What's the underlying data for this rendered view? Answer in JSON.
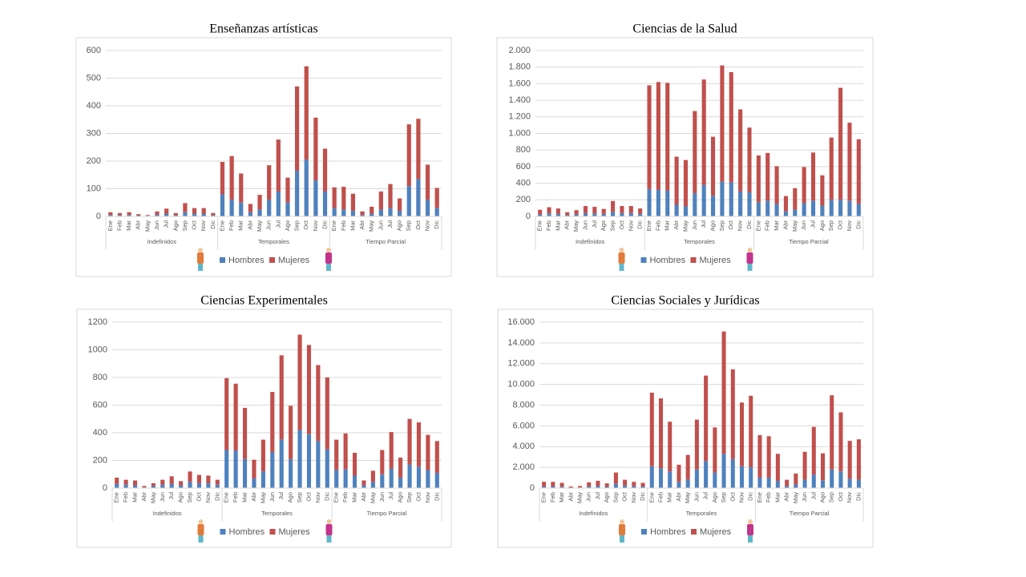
{
  "chart_data": [
    {
      "type": "bar",
      "stacked": true,
      "title": "Enseñanzas artísticas",
      "groups": [
        "Indefinidos",
        "Temporales",
        "Tiempo Parcial"
      ],
      "categories": [
        "Ene",
        "Feb",
        "Mar",
        "Abr",
        "May",
        "Jun",
        "Jul",
        "Ago",
        "Sep",
        "Oct",
        "Nov",
        "Dic",
        "Ene",
        "Feb",
        "Mar",
        "Abr",
        "May",
        "Jun",
        "Jul",
        "Ago",
        "Sep",
        "Oct",
        "Nov",
        "Dic",
        "Ene",
        "Feb",
        "Mar",
        "Abr",
        "May",
        "Jun",
        "Jul",
        "Ago",
        "Sep",
        "Oct",
        "Nov",
        "Dic"
      ],
      "series": [
        {
          "name": "Hombres",
          "color": "#4f81bd",
          "values": [
            5,
            4,
            5,
            3,
            2,
            6,
            10,
            4,
            15,
            10,
            10,
            4,
            80,
            60,
            50,
            15,
            25,
            60,
            90,
            50,
            165,
            205,
            130,
            90,
            30,
            25,
            20,
            5,
            10,
            25,
            30,
            20,
            110,
            135,
            60,
            30
          ]
        },
        {
          "name": "Mujeres",
          "color": "#c0504d",
          "values": [
            10,
            8,
            10,
            5,
            3,
            12,
            18,
            8,
            33,
            20,
            20,
            8,
            117,
            158,
            105,
            30,
            53,
            125,
            188,
            90,
            305,
            338,
            227,
            155,
            75,
            82,
            62,
            13,
            25,
            65,
            87,
            45,
            223,
            218,
            127,
            73
          ]
        }
      ],
      "ylim": [
        0,
        600
      ],
      "yticks": [
        0,
        100,
        200,
        300,
        400,
        500,
        600
      ],
      "grid": true,
      "legend": "bottom"
    },
    {
      "type": "bar",
      "stacked": true,
      "title": "Ciencias de la Salud",
      "groups": [
        "Indefinidos",
        "Temporales",
        "Tiempo Parcial"
      ],
      "categories": [
        "Ene",
        "Feb",
        "Mar",
        "Abr",
        "May",
        "Jun",
        "Jul",
        "Ago",
        "Sep",
        "Oct",
        "Nov",
        "Dic",
        "Ene",
        "Feb",
        "Mar",
        "Abr",
        "May",
        "Jun",
        "Jul",
        "Ago",
        "Sep",
        "Oct",
        "Nov",
        "Dic",
        "Ene",
        "Feb",
        "Mar",
        "Abr",
        "May",
        "Jun",
        "Jul",
        "Ago",
        "Sep",
        "Oct",
        "Nov",
        "Dic"
      ],
      "series": [
        {
          "name": "Hombres",
          "color": "#4f81bd",
          "values": [
            25,
            35,
            30,
            15,
            25,
            40,
            35,
            30,
            55,
            40,
            40,
            30,
            330,
            320,
            310,
            140,
            120,
            280,
            380,
            250,
            420,
            410,
            300,
            290,
            170,
            190,
            150,
            60,
            80,
            160,
            190,
            130,
            200,
            200,
            190,
            150
          ]
        },
        {
          "name": "Mujeres",
          "color": "#c0504d",
          "values": [
            55,
            75,
            65,
            35,
            50,
            85,
            80,
            60,
            130,
            85,
            85,
            65,
            1250,
            1300,
            1300,
            580,
            560,
            990,
            1270,
            710,
            1400,
            1330,
            990,
            780,
            565,
            575,
            455,
            185,
            260,
            435,
            580,
            365,
            750,
            1350,
            940,
            780
          ]
        }
      ],
      "ylim": [
        0,
        2000
      ],
      "yticks": [
        0,
        {
          "value": 200,
          "label": "200"
        },
        {
          "value": 400,
          "label": "400"
        },
        {
          "value": 600,
          "label": "600"
        },
        {
          "value": 800,
          "label": "800"
        },
        {
          "value": 1000,
          "label": "1.000"
        },
        {
          "value": 1200,
          "label": "1.200"
        },
        {
          "value": 1400,
          "label": "1.400"
        },
        {
          "value": 1600,
          "label": "1.600"
        },
        {
          "value": 1800,
          "label": "1.800"
        },
        {
          "value": 2000,
          "label": "2.000"
        }
      ],
      "grid": true,
      "legend": "bottom"
    },
    {
      "type": "bar",
      "stacked": true,
      "title": "Ciencias Experimentales",
      "groups": [
        "Indefinidos",
        "Temporales",
        "Tiempo Parcial"
      ],
      "categories": [
        "Ene",
        "Feb",
        "Mar",
        "Abr",
        "May",
        "Jun",
        "Jul",
        "Ago",
        "Sep",
        "Oct",
        "Nov",
        "Dic",
        "Ene",
        "Feb",
        "Mar",
        "Abr",
        "May",
        "Jun",
        "Jul",
        "Ago",
        "Sep",
        "Oct",
        "Nov",
        "Dic",
        "Ene",
        "Feb",
        "Mar",
        "Abr",
        "May",
        "Jun",
        "Jul",
        "Ago",
        "Sep",
        "Oct",
        "Nov",
        "Dic"
      ],
      "series": [
        {
          "name": "Hombres",
          "color": "#4f81bd",
          "values": [
            30,
            25,
            20,
            5,
            15,
            25,
            30,
            20,
            45,
            35,
            35,
            25,
            275,
            270,
            210,
            70,
            120,
            260,
            350,
            210,
            420,
            390,
            340,
            280,
            130,
            135,
            90,
            20,
            45,
            100,
            140,
            75,
            170,
            155,
            130,
            110
          ]
        },
        {
          "name": "Mujeres",
          "color": "#c0504d",
          "values": [
            45,
            35,
            35,
            10,
            20,
            35,
            55,
            30,
            75,
            60,
            55,
            35,
            520,
            485,
            370,
            135,
            230,
            435,
            610,
            385,
            690,
            645,
            550,
            520,
            220,
            260,
            165,
            35,
            80,
            175,
            265,
            145,
            330,
            320,
            255,
            230
          ]
        }
      ],
      "ylim": [
        0,
        1200
      ],
      "yticks": [
        0,
        200,
        400,
        600,
        800,
        1000,
        1200
      ],
      "grid": true,
      "legend": "bottom"
    },
    {
      "type": "bar",
      "stacked": true,
      "title": "Ciencias Sociales y Jurídicas",
      "groups": [
        "Indefinidos",
        "Temporales",
        "Tiempo Parcial"
      ],
      "categories": [
        "Ene",
        "Feb",
        "Mar",
        "Abr",
        "May",
        "Jun",
        "Jul",
        "Ago",
        "Sep",
        "Oct",
        "Nov",
        "Dic",
        "Ene",
        "Feb",
        "Mar",
        "Abr",
        "May",
        "Jun",
        "Jul",
        "Ago",
        "Sep",
        "Oct",
        "Nov",
        "Dic",
        "Ene",
        "Feb",
        "Mar",
        "Abr",
        "May",
        "Jun",
        "Jul",
        "Ago",
        "Sep",
        "Oct",
        "Nov",
        "Dic"
      ],
      "series": [
        {
          "name": "Hombres",
          "color": "#4f81bd",
          "values": [
            150,
            150,
            130,
            40,
            50,
            150,
            200,
            120,
            400,
            250,
            180,
            150,
            2100,
            1900,
            1600,
            600,
            800,
            1800,
            2600,
            1500,
            3300,
            2800,
            2100,
            2000,
            1000,
            1000,
            700,
            200,
            350,
            800,
            1300,
            750,
            1800,
            1600,
            900,
            800
          ]
        },
        {
          "name": "Mujeres",
          "color": "#c0504d",
          "values": [
            450,
            450,
            370,
            110,
            150,
            400,
            500,
            330,
            1100,
            550,
            420,
            350,
            7100,
            6750,
            4800,
            1650,
            2400,
            4800,
            8250,
            4350,
            11800,
            8650,
            6150,
            6900,
            4100,
            4000,
            2600,
            600,
            1050,
            2700,
            4600,
            2600,
            7150,
            5700,
            3650,
            3900
          ]
        }
      ],
      "ylim": [
        0,
        16000
      ],
      "yticks": [
        0,
        {
          "value": 2000,
          "label": "2.000"
        },
        {
          "value": 4000,
          "label": "4.000"
        },
        {
          "value": 6000,
          "label": "6.000"
        },
        {
          "value": 8000,
          "label": "8.000"
        },
        {
          "value": 10000,
          "label": "10.000"
        },
        {
          "value": 12000,
          "label": "12.000"
        },
        {
          "value": 14000,
          "label": "14.000"
        },
        {
          "value": 16000,
          "label": "16.000"
        }
      ],
      "grid": true,
      "legend": "bottom"
    }
  ]
}
